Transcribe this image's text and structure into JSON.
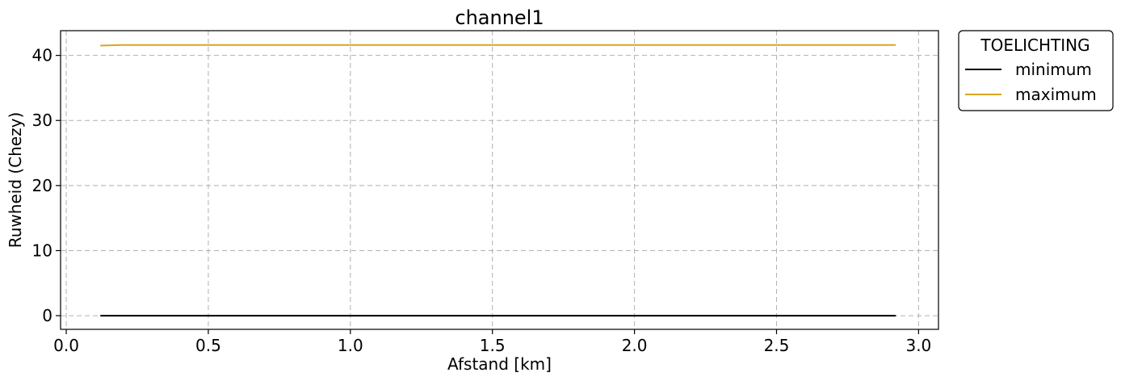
{
  "chart_data": {
    "type": "line",
    "title": "channel1",
    "xlabel": "Afstand [km]",
    "ylabel": "Ruwheid (Chezy)",
    "xlim": [
      -0.02,
      3.07
    ],
    "ylim": [
      -2.1,
      43.8
    ],
    "xticks": [
      0.0,
      0.5,
      1.0,
      1.5,
      2.0,
      2.5,
      3.0
    ],
    "xtick_labels": [
      "0.0",
      "0.5",
      "1.0",
      "1.5",
      "2.0",
      "2.5",
      "3.0"
    ],
    "yticks": [
      0,
      10,
      20,
      30,
      40
    ],
    "ytick_labels": [
      "0",
      "10",
      "20",
      "30",
      "40"
    ],
    "grid": true,
    "legend": {
      "title": "TOELICHTING",
      "placement": "outside-top-right"
    },
    "series": [
      {
        "name": "minimum",
        "color": "#000000",
        "x": [
          0.12,
          0.2,
          0.5,
          1.0,
          1.5,
          2.0,
          2.5,
          2.92
        ],
        "y": [
          0,
          0,
          0,
          0,
          0,
          0,
          0,
          0
        ]
      },
      {
        "name": "maximum",
        "color": "#DAA520",
        "x": [
          0.12,
          0.2,
          0.5,
          1.0,
          1.5,
          2.0,
          2.5,
          2.92
        ],
        "y": [
          41.5,
          41.6,
          41.6,
          41.6,
          41.6,
          41.6,
          41.6,
          41.6
        ]
      }
    ]
  }
}
